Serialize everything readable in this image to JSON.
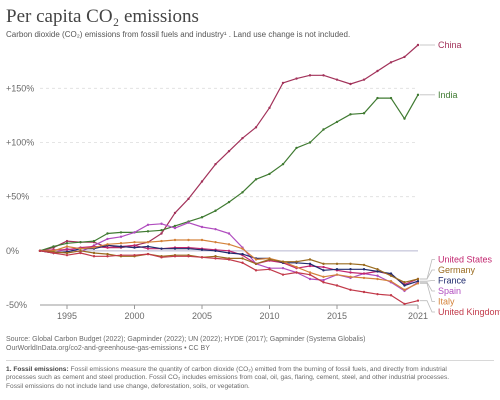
{
  "title": "Per capita CO₂ emissions",
  "subtitle": "Carbon dioxide (CO₂) emissions from fossil fuels and industry¹ . Land use change is not included.",
  "source": {
    "line1": "Source: Global Carbon Budget (2022); Gapminder (2022); UN (2022); HYDE (2017); Gapminder (Systema Globalis)",
    "line2": "OurWorldInData.org/co2-and-greenhouse-gas-emissions • CC BY"
  },
  "footnote": {
    "title": "1. Fossil emissions:",
    "line1": " Fossil emissions measure the quantity of carbon dioxide (CO₂) emitted from the burning of fossil fuels, and directly from industrial",
    "line2": "processes such as cement and steel production. Fossil CO₂ includes emissions from coal, oil, gas, flaring, cement, steel, and other industrial processes.",
    "line3": "Fossil emissions do not include land use change, deforestation, soils, or vegetation."
  },
  "colors": {
    "China": "#a2325a",
    "India": "#3f7a31",
    "Spain": "#b04dbf",
    "United States": "#c2266f",
    "France": "#202c6e",
    "Italy": "#d4823a",
    "Germany": "#9a6b1f",
    "United Kingdom": "#c23a4a",
    "grid": "#dddddd",
    "zero_line": "#b8b8d0",
    "axis_text": "#6a6a6a"
  },
  "chart_data": {
    "type": "line",
    "title": "Per capita CO₂ emissions",
    "xlabel": "",
    "ylabel": "",
    "xlim": [
      1993,
      2021
    ],
    "ylim": [
      -50,
      190
    ],
    "y_ticks": [
      -50,
      0,
      50,
      100,
      150
    ],
    "y_tick_labels": [
      "-50%",
      "0%",
      "+50%",
      "+100%",
      "+150%"
    ],
    "x_ticks": [
      1995,
      2000,
      2005,
      2010,
      2015,
      2021
    ],
    "x_tick_labels": [
      "1995",
      "2000",
      "2005",
      "2010",
      "2015",
      "2021"
    ],
    "grid": "horizontal",
    "legend": "right (labels at line ends)",
    "x": [
      1993,
      1994,
      1995,
      1996,
      1997,
      1998,
      1999,
      2000,
      2001,
      2002,
      2003,
      2004,
      2005,
      2006,
      2007,
      2008,
      2009,
      2010,
      2011,
      2012,
      2013,
      2014,
      2015,
      2016,
      2017,
      2018,
      2019,
      2020,
      2021
    ],
    "series": [
      {
        "name": "China",
        "values": [
          0,
          3,
          9,
          8,
          8,
          3,
          3,
          5,
          8,
          16,
          35,
          48,
          64,
          80,
          92,
          104,
          114,
          132,
          155,
          159,
          162,
          162,
          158,
          154,
          158,
          166,
          174,
          179,
          190
        ]
      },
      {
        "name": "India",
        "values": [
          0,
          4,
          7,
          8,
          9,
          16,
          17,
          17,
          18,
          19,
          23,
          27,
          31,
          37,
          45,
          54,
          66,
          71,
          80,
          95,
          100,
          112,
          119,
          126,
          127,
          141,
          141,
          122,
          144
        ]
      },
      {
        "name": "Spain",
        "values": [
          0,
          -2,
          2,
          -1,
          5,
          11,
          13,
          17,
          24,
          25,
          21,
          26,
          22,
          20,
          16,
          3,
          -12,
          -16,
          -16,
          -20,
          -26,
          -27,
          -22,
          -25,
          -21,
          -23,
          -29,
          -37,
          -29
        ]
      },
      {
        "name": "United States",
        "values": [
          0,
          1,
          1,
          3,
          4,
          3,
          4,
          5,
          2,
          2,
          3,
          3,
          2,
          1,
          0,
          -4,
          -12,
          -9,
          -11,
          -16,
          -14,
          -15,
          -18,
          -20,
          -21,
          -19,
          -22,
          -31,
          -26
        ]
      },
      {
        "name": "France",
        "values": [
          0,
          -2,
          -1,
          2,
          2,
          5,
          4,
          3,
          4,
          2,
          2,
          2,
          1,
          0,
          -2,
          -3,
          -7,
          -7,
          -11,
          -11,
          -12,
          -18,
          -17,
          -17,
          -17,
          -19,
          -21,
          -32,
          -28
        ]
      },
      {
        "name": "Italy",
        "values": [
          0,
          0,
          4,
          2,
          3,
          6,
          7,
          8,
          8,
          9,
          10,
          10,
          10,
          8,
          6,
          2,
          -8,
          -7,
          -10,
          -15,
          -20,
          -24,
          -22,
          -24,
          -25,
          -26,
          -28,
          -36,
          -30
        ]
      },
      {
        "name": "Germany",
        "values": [
          0,
          -1,
          -2,
          0,
          -2,
          -3,
          -5,
          -5,
          -3,
          -5,
          -4,
          -4,
          -6,
          -5,
          -7,
          -7,
          -12,
          -8,
          -10,
          -10,
          -8,
          -12,
          -12,
          -12,
          -13,
          -17,
          -23,
          -29,
          -26
        ]
      },
      {
        "name": "United Kingdom",
        "values": [
          0,
          -2,
          -4,
          -2,
          -5,
          -5,
          -4,
          -4,
          -3,
          -6,
          -5,
          -5,
          -6,
          -7,
          -8,
          -11,
          -18,
          -17,
          -22,
          -20,
          -22,
          -29,
          -32,
          -36,
          -38,
          -40,
          -41,
          -49,
          -46
        ]
      }
    ],
    "end_labels": [
      {
        "name": "China",
        "text": "China"
      },
      {
        "name": "India",
        "text": "India"
      },
      {
        "name": "Spain",
        "text": "Spain"
      },
      {
        "name": "United States",
        "text": "United States"
      },
      {
        "name": "France",
        "text": "France"
      },
      {
        "name": "Italy",
        "text": "Italy"
      },
      {
        "name": "Germany",
        "text": "Germany"
      },
      {
        "name": "United Kingdom",
        "text": "United Kingdom"
      }
    ]
  }
}
